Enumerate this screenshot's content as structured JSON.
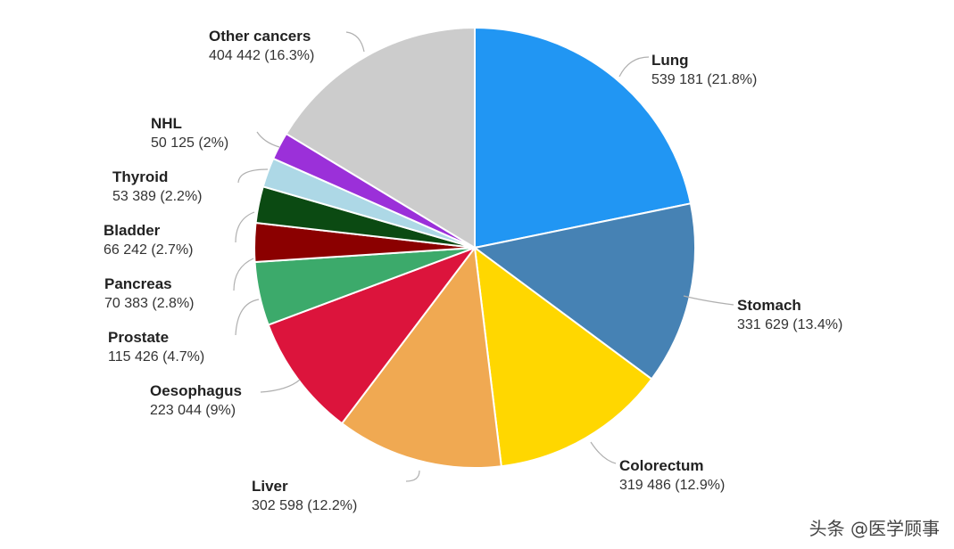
{
  "chart_data": {
    "type": "pie",
    "slices": [
      {
        "name": "Lung",
        "value": 539181,
        "value_label": "539 181 (21.8%)",
        "percent": 21.8,
        "color": "#2196F3"
      },
      {
        "name": "Stomach",
        "value": 331629,
        "value_label": "331 629 (13.4%)",
        "percent": 13.4,
        "color": "#4682B4"
      },
      {
        "name": "Colorectum",
        "value": 319486,
        "value_label": "319 486 (12.9%)",
        "percent": 12.9,
        "color": "#FFD700"
      },
      {
        "name": "Liver",
        "value": 302598,
        "value_label": "302 598 (12.2%)",
        "percent": 12.2,
        "color": "#F0A952"
      },
      {
        "name": "Oesophagus",
        "value": 223044,
        "value_label": "223 044 (9%)",
        "percent": 9,
        "color": "#DC143C"
      },
      {
        "name": "Prostate",
        "value": 115426,
        "value_label": "115 426 (4.7%)",
        "percent": 4.7,
        "color": "#3CAA6B"
      },
      {
        "name": "Pancreas",
        "value": 70383,
        "value_label": "70 383 (2.8%)",
        "percent": 2.8,
        "color": "#8B0000"
      },
      {
        "name": "Bladder",
        "value": 66242,
        "value_label": "66 242 (2.7%)",
        "percent": 2.7,
        "color": "#0B4A12"
      },
      {
        "name": "Thyroid",
        "value": 53389,
        "value_label": "53 389 (2.2%)",
        "percent": 2.2,
        "color": "#ADD8E6"
      },
      {
        "name": "NHL",
        "value": 50125,
        "value_label": "50 125 (2%)",
        "percent": 2,
        "color": "#9B30D9"
      },
      {
        "name": "Other cancers",
        "value": 404442,
        "value_label": "404 442 (16.3%)",
        "percent": 16.3,
        "color": "#CCCCCC"
      }
    ]
  },
  "watermark": "头条 @医学顾事"
}
